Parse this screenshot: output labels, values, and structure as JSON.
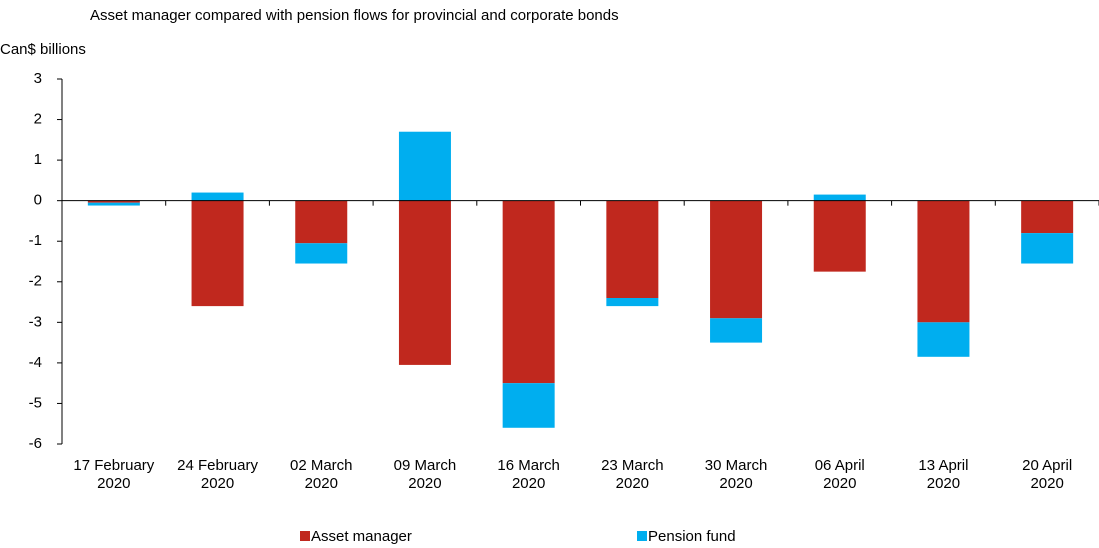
{
  "chart_data": {
    "type": "stacked_bar",
    "title": "Asset manager compared with pension flows for provincial and corporate bonds",
    "y_axis_label": "Can$ billions",
    "categories": [
      "17 February 2020",
      "24 February 2020",
      "02 March 2020",
      "09 March 2020",
      "16 March 2020",
      "23 March 2020",
      "30 March 2020",
      "06 April 2020",
      "13 April 2020",
      "20 April 2020"
    ],
    "series": [
      {
        "name": "Asset manager",
        "color": "#c0281e",
        "values": [
          -0.05,
          -2.6,
          -1.05,
          -4.05,
          -4.5,
          -2.4,
          -2.9,
          -1.75,
          -3.0,
          -0.8
        ]
      },
      {
        "name": "Pension fund",
        "color": "#00aeef",
        "values": [
          -0.07,
          0.2,
          -0.5,
          1.7,
          -1.1,
          -0.2,
          -0.6,
          0.15,
          -0.85,
          -0.75
        ]
      }
    ],
    "ylim": [
      -6,
      3
    ],
    "yticks": [
      -6,
      -5,
      -4,
      -3,
      -2,
      -1,
      0,
      1,
      2,
      3
    ],
    "legend": "bottom"
  }
}
